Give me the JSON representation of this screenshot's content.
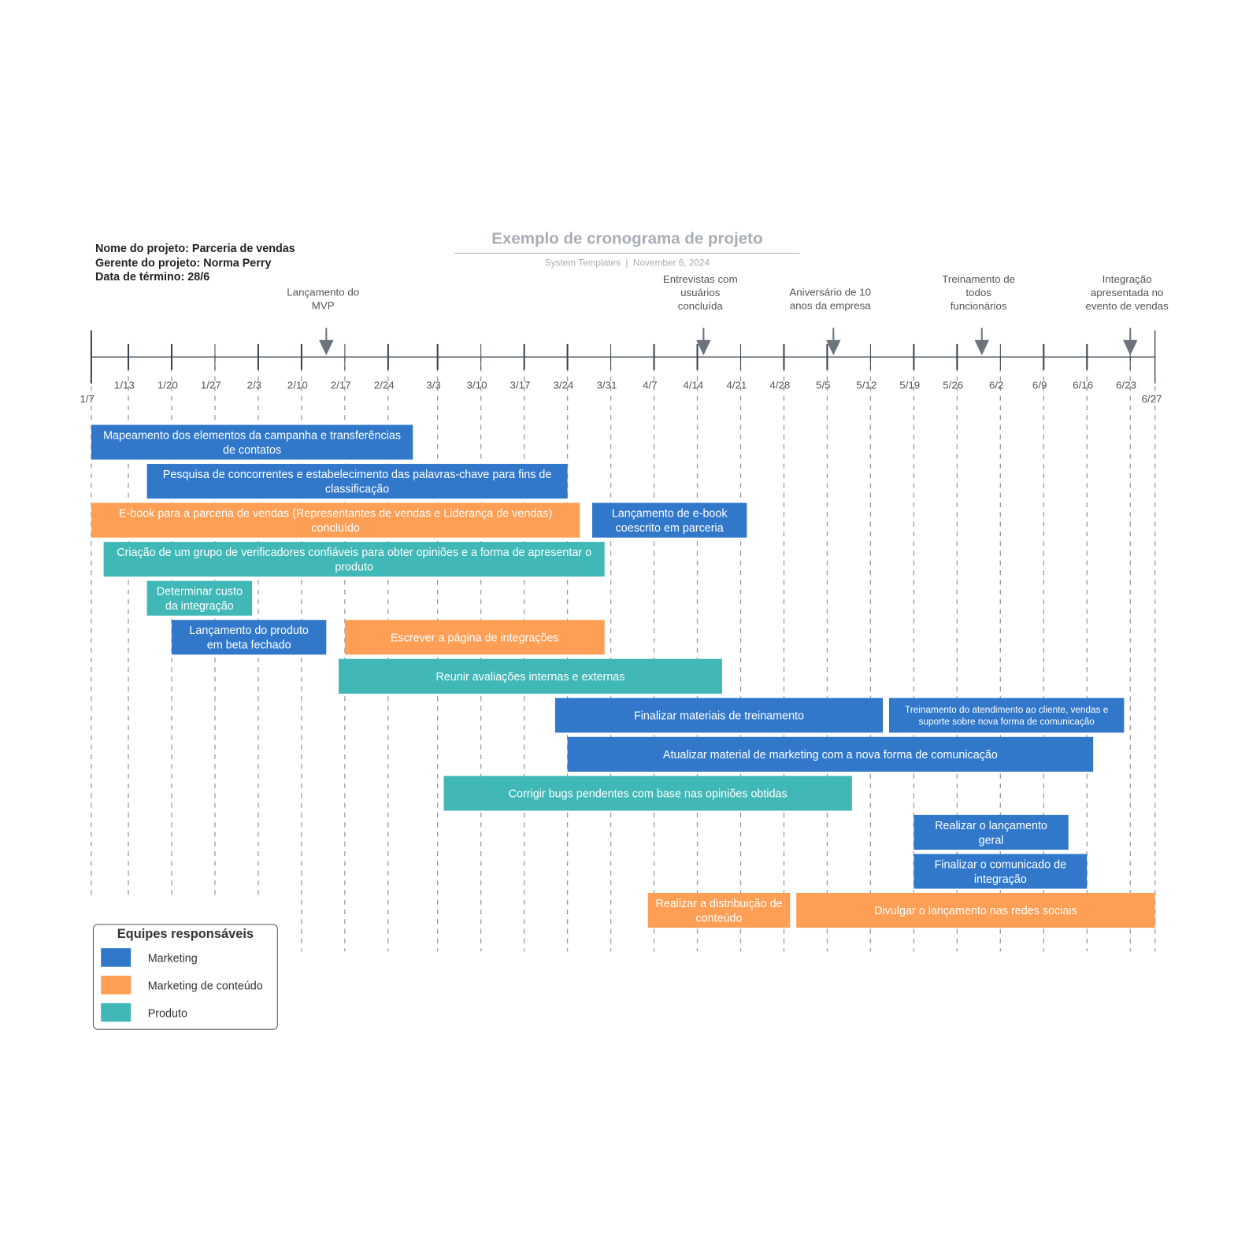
{
  "header": {
    "title": "Exemplo de cronograma de projeto",
    "subtitle": "System Templates  |  November 6, 2024",
    "info": [
      "Nome do projeto: Parceria de vendas",
      "Gerente do projeto: Norma Perry",
      "Data de término: 28/6"
    ]
  },
  "colors": {
    "Marketing": "#3178cb",
    "Marketing de conteúdo": "#ff9f55",
    "Produto": "#3fb8b7",
    "axis": "#3a4250",
    "arrow": "#6d737b",
    "grid": "#9a9ea4"
  },
  "timeline": {
    "year": 2024,
    "start": "1/7",
    "end": "6/27",
    "ticks": [
      "1/13",
      "1/20",
      "1/27",
      "2/3",
      "2/10",
      "2/17",
      "2/24",
      "3/3",
      "3/10",
      "3/17",
      "3/24",
      "3/31",
      "4/7",
      "4/14",
      "4/21",
      "4/28",
      "5/5",
      "5/12",
      "5/19",
      "5/26",
      "6/2",
      "6/9",
      "6/16",
      "6/23"
    ],
    "start_label": "1/7",
    "end_label": "6/27"
  },
  "milestones": [
    {
      "date": "2/14",
      "label": [
        "Lançamento do",
        "MVP"
      ]
    },
    {
      "date": "4/15",
      "label": [
        "Entrevistas com",
        "usuários",
        "concluída"
      ]
    },
    {
      "date": "5/6",
      "label": [
        "Aniversário de 10",
        "anos da empresa"
      ]
    },
    {
      "date": "5/30",
      "label": [
        "Treinamento de",
        "todos",
        "funcionários"
      ]
    },
    {
      "date": "6/23",
      "label": [
        "Integração",
        "apresentada no",
        "evento de vendas"
      ]
    }
  ],
  "tasks": [
    {
      "row": 0,
      "start": "1/7",
      "end": "2/28",
      "team": "Marketing",
      "label": [
        "Mapeamento dos elementos da campanha e transferências",
        "de contatos"
      ]
    },
    {
      "row": 1,
      "start": "1/16",
      "end": "3/24",
      "team": "Marketing",
      "label": [
        "Pesquisa de concorrentes e estabelecimento das palavras-chave para fins de",
        "classificação"
      ]
    },
    {
      "row": 2,
      "start": "1/7",
      "end": "3/26",
      "team": "Marketing de conteúdo",
      "label": [
        "E-book para a parceria de vendas (Representantes de vendas e Liderança de vendas)",
        "concluído"
      ]
    },
    {
      "row": 2,
      "start": "3/28",
      "end": "4/22",
      "team": "Marketing",
      "label": [
        "Lançamento de e-book",
        "coescrito em parceria"
      ]
    },
    {
      "row": 3,
      "start": "1/9",
      "end": "3/30",
      "team": "Produto",
      "label": [
        "Criação de um grupo de verificadores confiáveis para obter opiniões e a forma de apresentar o",
        "produto"
      ]
    },
    {
      "row": 4,
      "start": "1/16",
      "end": "2/2",
      "team": "Produto",
      "label": [
        "Determinar custo",
        "da integração"
      ]
    },
    {
      "row": 5,
      "start": "1/20",
      "end": "2/14",
      "team": "Marketing",
      "label": [
        "Lançamento do produto",
        "em beta fechado"
      ]
    },
    {
      "row": 5,
      "start": "2/17",
      "end": "3/30",
      "team": "Marketing de conteúdo",
      "label": [
        "Escrever a página de integrações"
      ]
    },
    {
      "row": 6,
      "start": "2/16",
      "end": "4/18",
      "team": "Produto",
      "label": [
        "Reunir avaliações internas e externas"
      ]
    },
    {
      "row": 7,
      "start": "3/22",
      "end": "5/14",
      "team": "Marketing",
      "label": [
        "Finalizar materiais de treinamento"
      ]
    },
    {
      "row": 7,
      "start": "5/15",
      "end": "6/22",
      "team": "Marketing",
      "label": [
        "Treinamento do atendimento ao cliente, vendas e",
        "suporte sobre nova forma de comunicação"
      ],
      "small": true
    },
    {
      "row": 8,
      "start": "3/24",
      "end": "6/17",
      "team": "Marketing",
      "label": [
        "Atualizar material de marketing com a nova forma de comunicação"
      ]
    },
    {
      "row": 9,
      "start": "3/4",
      "end": "5/9",
      "team": "Produto",
      "label": [
        "Corrigir bugs pendentes com base nas opiniões obtidas"
      ]
    },
    {
      "row": 10,
      "start": "5/19",
      "end": "6/13",
      "team": "Marketing",
      "label": [
        "Realizar o lançamento",
        "geral"
      ]
    },
    {
      "row": 11,
      "start": "5/19",
      "end": "6/16",
      "team": "Marketing",
      "label": [
        "Finalizar o comunicado de",
        "integração"
      ]
    },
    {
      "row": 12,
      "start": "4/6",
      "end": "4/29",
      "team": "Marketing de conteúdo",
      "label": [
        "Realizar a distribuição de",
        "conteúdo"
      ]
    },
    {
      "row": 12,
      "start": "4/30",
      "end": "6/27",
      "team": "Marketing de conteúdo",
      "label": [
        "Divulgar o lançamento nas redes sociais"
      ]
    }
  ],
  "legend": {
    "title": "Equipes responsáveis",
    "items": [
      "Marketing",
      "Marketing de conteúdo",
      "Produto"
    ]
  }
}
